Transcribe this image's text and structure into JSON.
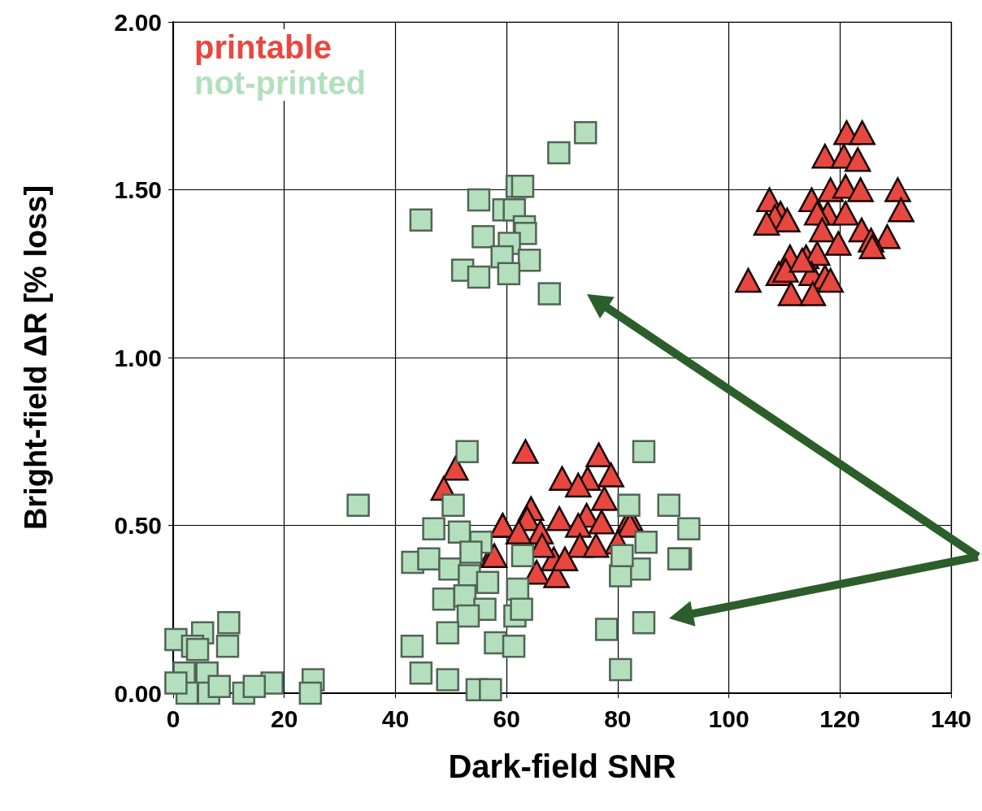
{
  "chart_data": {
    "type": "scatter",
    "xlabel": "Dark-field SNR",
    "ylabel": "Bright-field ΔR [% loss]",
    "xlim": [
      0,
      140
    ],
    "xticks": [
      0,
      20,
      40,
      60,
      80,
      100,
      120,
      140
    ],
    "ylim": [
      0,
      2
    ],
    "yticks": [
      {
        "value": 0,
        "label": "0.00"
      },
      {
        "value": 0.5,
        "label": "0.50"
      },
      {
        "value": 1,
        "label": "1.00"
      },
      {
        "value": 1.5,
        "label": "1.50"
      },
      {
        "value": 2,
        "label": "2.00"
      }
    ],
    "grid": true,
    "legend": "top left",
    "series": [
      {
        "name": "printable",
        "color": "#e8473f",
        "marker": "triangle",
        "x": [
          63.4,
          50.8,
          48.7,
          59.3,
          57.3,
          76.6,
          70.0,
          74.6,
          78.8,
          72.9,
          77.6,
          64.4,
          63.7,
          59.3,
          69.5,
          74.4,
          77.1,
          82.2,
          82.2,
          72.9,
          66.1,
          73.2,
          80.0,
          57.8,
          65.4,
          69.0,
          68.5,
          70.5,
          76.1,
          66.4,
          62.2,
          121.2,
          124.0,
          117.3,
          120.7,
          123.2,
          118.3,
          121.0,
          123.7,
          130.4,
          107.3,
          114.9,
          117.8,
          121.0,
          131.0,
          109.3,
          108.3,
          115.9,
          110.5,
          106.8,
          116.8,
          123.9,
          128.5,
          125.6,
          119.7,
          125.8,
          111.0,
          113.9,
          115.9,
          109.0,
          110.2,
          114.9,
          117.3,
          118.3,
          103.5,
          111.2,
          115.1,
          113.2
        ],
        "values": [
          0.72,
          0.67,
          0.61,
          0.5,
          0.41,
          0.71,
          0.64,
          0.64,
          0.65,
          0.62,
          0.58,
          0.55,
          0.52,
          0.5,
          0.52,
          0.53,
          0.51,
          0.52,
          0.5,
          0.5,
          0.48,
          0.44,
          0.45,
          0.41,
          0.36,
          0.35,
          0.4,
          0.4,
          0.44,
          0.44,
          0.48,
          1.67,
          1.67,
          1.6,
          1.6,
          1.59,
          1.5,
          1.51,
          1.5,
          1.5,
          1.47,
          1.47,
          1.43,
          1.43,
          1.44,
          1.43,
          1.42,
          1.43,
          1.41,
          1.4,
          1.38,
          1.38,
          1.36,
          1.35,
          1.34,
          1.33,
          1.3,
          1.3,
          1.31,
          1.25,
          1.26,
          1.25,
          1.24,
          1.23,
          1.23,
          1.19,
          1.19,
          1.29
        ]
      },
      {
        "name": "not-printed",
        "color": "#b3dfbd",
        "marker": "square",
        "x": [
          74.2,
          69.4,
          61.9,
          62.9,
          55.0,
          44.6,
          59.5,
          61.4,
          63.2,
          63.4,
          55.8,
          60.5,
          59.2,
          64.1,
          52.1,
          55.0,
          60.4,
          67.7,
          10.0,
          5.3,
          9.8,
          0.5,
          3.5,
          4.4,
          2.0,
          6.1,
          2.5,
          6.4,
          12.7,
          17.8,
          14.6,
          25.2,
          24.7,
          0.5,
          8.3,
          52.9,
          33.3,
          50.4,
          46.9,
          51.5,
          55.4,
          43.1,
          46.0,
          49.8,
          53.6,
          53.3,
          56.6,
          62.9,
          48.7,
          52.5,
          56.1,
          53.1,
          62.0,
          61.5,
          62.7,
          49.4,
          43.0,
          58.0,
          61.3,
          44.6,
          49.4,
          54.7,
          57.1,
          84.7,
          82.0,
          89.2,
          92.8,
          91.3,
          91.0,
          85.1,
          83.9,
          80.5,
          80.8,
          78.0,
          84.7,
          80.5
        ],
        "values": [
          1.67,
          1.61,
          1.51,
          1.51,
          1.47,
          1.41,
          1.44,
          1.44,
          1.39,
          1.37,
          1.36,
          1.34,
          1.3,
          1.29,
          1.26,
          1.24,
          1.25,
          1.19,
          0.21,
          0.18,
          0.14,
          0.16,
          0.14,
          0.13,
          0.06,
          0.06,
          0.0,
          0.0,
          0.0,
          0.03,
          0.02,
          0.04,
          0.0,
          0.03,
          0.02,
          0.72,
          0.56,
          0.56,
          0.49,
          0.48,
          0.45,
          0.39,
          0.4,
          0.37,
          0.42,
          0.35,
          0.33,
          0.41,
          0.28,
          0.29,
          0.25,
          0.23,
          0.31,
          0.23,
          0.25,
          0.18,
          0.14,
          0.15,
          0.14,
          0.06,
          0.04,
          0.01,
          0.01,
          0.72,
          0.56,
          0.56,
          0.49,
          0.4,
          0.4,
          0.45,
          0.37,
          0.35,
          0.41,
          0.19,
          0.21,
          0.07
        ]
      }
    ]
  }
}
